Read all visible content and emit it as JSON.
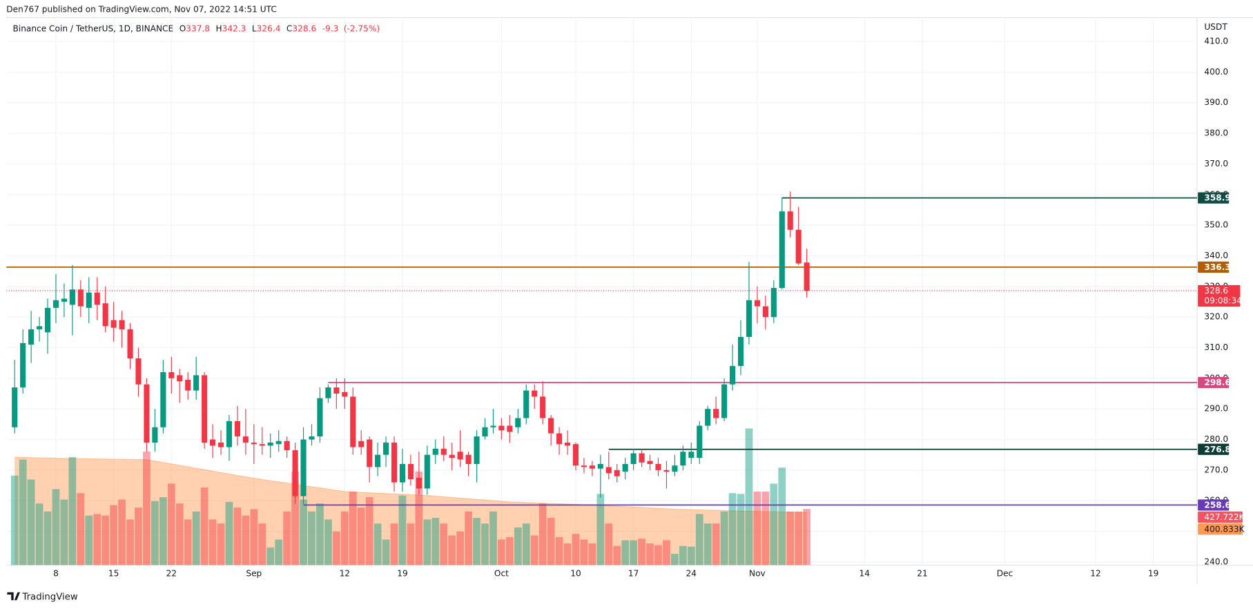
{
  "header": "Den767 published on TradingView.com, Nov 07, 2022 14:51 UTC",
  "footer": "TradingView",
  "chart_data": {
    "type": "candlestick",
    "symbol": "Binance Coin / TetherUS, 1D, BINANCE",
    "ohlc_labels": [
      "O",
      "H",
      "L",
      "C"
    ],
    "change": -9.3,
    "change_pct": {
      "value": -2.75,
      "label": "(-2.75%)"
    },
    "currency": "USDT",
    "countdown": "09:08:34",
    "up_color": "#089981",
    "down_color": "#f23645",
    "x": [
      0,
      1,
      2,
      3,
      4,
      5,
      6,
      7,
      8,
      9,
      10,
      11,
      12,
      13,
      14,
      15,
      16,
      17,
      18,
      19,
      20,
      21,
      22,
      23,
      24,
      25,
      26,
      27,
      28,
      29,
      30,
      31,
      32,
      33,
      34,
      35,
      36,
      37,
      38,
      39,
      40,
      41,
      42,
      43,
      44,
      45,
      46,
      47,
      48,
      49,
      50,
      51,
      52,
      53,
      54,
      55,
      56,
      57,
      58,
      59,
      60,
      61,
      62,
      63,
      64,
      65,
      66,
      67,
      68,
      69,
      70,
      71,
      72,
      73,
      74,
      75,
      76,
      77,
      78,
      79,
      80,
      81,
      82,
      83,
      84,
      85,
      86,
      87,
      88,
      89,
      90,
      91,
      92,
      93,
      94,
      95,
      96
    ],
    "open": [
      284,
      297,
      311,
      316,
      315,
      323,
      325,
      324,
      329,
      323,
      328,
      324.5,
      319,
      319,
      316,
      306.5,
      298,
      279,
      284,
      302,
      301,
      299.5,
      296,
      301,
      280,
      279,
      277.5,
      286,
      281,
      279,
      278.5,
      278,
      278.5,
      279.5,
      276.5,
      261.5,
      280,
      281,
      293.5,
      297,
      295.5,
      294,
      279.5,
      280,
      271,
      275,
      279,
      266,
      272,
      267.5,
      264,
      275,
      277,
      275,
      276,
      275,
      272,
      281,
      284,
      284.5,
      284.5,
      284,
      287,
      296,
      294,
      287,
      282,
      279,
      278.5,
      271.5,
      271.5,
      270.5,
      271,
      270,
      269.5,
      272,
      275.5,
      273,
      272,
      270,
      269.5,
      271.5,
      274,
      274,
      284.5,
      290,
      287,
      298,
      304,
      313.5,
      325.5,
      323.5,
      320,
      329.5,
      354.5,
      348.5,
      337.8
    ],
    "high": [
      306,
      316,
      322,
      320,
      326,
      334,
      331,
      337,
      332,
      333,
      333,
      330,
      325,
      322,
      318,
      310,
      300,
      290,
      306,
      307,
      303,
      302,
      307,
      302,
      285,
      283,
      288,
      291,
      290,
      285,
      284,
      282,
      283,
      281,
      279,
      284,
      285,
      297,
      298,
      300,
      300,
      297,
      283,
      281,
      279,
      281,
      281,
      277,
      275,
      276,
      278,
      280,
      281,
      279,
      283,
      276,
      283,
      287,
      290,
      287,
      288,
      290,
      298,
      298,
      299,
      288,
      284,
      283,
      279,
      274,
      273,
      275,
      276,
      272,
      274,
      277,
      277,
      275,
      274,
      273,
      275,
      278,
      279,
      286,
      291,
      294,
      300,
      311,
      319,
      338,
      330,
      327,
      332,
      359,
      361,
      356,
      342.3
    ],
    "low": [
      282,
      295,
      305,
      312,
      308,
      318,
      320,
      314,
      320,
      318,
      319,
      315,
      312,
      310,
      303,
      294,
      276,
      276,
      282,
      295,
      292,
      293,
      293,
      277,
      274,
      275,
      273,
      278,
      275,
      272,
      275,
      274,
      276,
      274,
      259,
      259,
      278,
      279,
      292,
      290,
      290,
      275,
      275,
      266,
      268,
      271,
      263,
      263,
      265,
      262,
      262,
      272,
      273,
      270,
      271,
      268,
      266,
      280,
      282,
      280,
      279,
      282,
      285,
      290,
      285,
      278,
      275,
      275,
      270,
      269,
      268,
      261,
      267,
      266,
      267,
      270,
      271,
      270,
      268,
      264,
      268,
      270,
      272,
      272,
      283,
      285,
      286,
      296,
      301,
      311,
      318,
      316,
      318,
      329,
      346,
      337,
      326.4
    ],
    "close": [
      297,
      311.5,
      316,
      317,
      323,
      325.5,
      326,
      329,
      323.5,
      328,
      324,
      317,
      316.5,
      316,
      306.5,
      298,
      279,
      284,
      302,
      300,
      299,
      296,
      301,
      279,
      278,
      277.5,
      286,
      281,
      279,
      278.5,
      278,
      279,
      279.5,
      276.5,
      261.5,
      280,
      281,
      293.5,
      297,
      295,
      294,
      277.5,
      277.5,
      271,
      275,
      279,
      266,
      272,
      267,
      264,
      275,
      277,
      275,
      274,
      273.5,
      272,
      281,
      284,
      284.5,
      283,
      282.5,
      287,
      296,
      294,
      287,
      282,
      278.5,
      278,
      271.5,
      271,
      270.5,
      272,
      269,
      268,
      272,
      275.5,
      272.5,
      272,
      270,
      269.5,
      271.5,
      276,
      276,
      284.5,
      290,
      287,
      298,
      304,
      313.5,
      325.5,
      323.5,
      320,
      329.5,
      354.5,
      348.5,
      337.5,
      328.6
    ],
    "volume": {
      "values": [
        683,
        805,
        653,
        470,
        409,
        580,
        500,
        824,
        549,
        378,
        390,
        378,
        458,
        500,
        348,
        439,
        866,
        488,
        518,
        622,
        470,
        348,
        409,
        592,
        348,
        317,
        482,
        439,
        378,
        427,
        317,
        134,
        195,
        409,
        714,
        500,
        409,
        470,
        348,
        256,
        409,
        561,
        439,
        518,
        317,
        195,
        317,
        531,
        317,
        714,
        348,
        360,
        317,
        226,
        256,
        409,
        360,
        317,
        409,
        195,
        213,
        287,
        317,
        226,
        470,
        360,
        213,
        165,
        238,
        195,
        165,
        543,
        317,
        146,
        189,
        189,
        201,
        165,
        152,
        189,
        85,
        146,
        140,
        390,
        317,
        317,
        409,
        549,
        543,
        1043,
        561,
        561,
        622,
        744,
        409,
        409,
        427.722
      ],
      "last_label": "427.722K",
      "color": "#f7525f"
    },
    "volume_ma": {
      "values": [
        823,
        822,
        820,
        818,
        817,
        815,
        814,
        813,
        812,
        811,
        810,
        809,
        808,
        807,
        806,
        806,
        805,
        794,
        783,
        772,
        761,
        750,
        739,
        728,
        717,
        706,
        695,
        684,
        673,
        663,
        653,
        644,
        635,
        626,
        617,
        607,
        598,
        589,
        580,
        570,
        561,
        558,
        555,
        552,
        549,
        546,
        543,
        540,
        537,
        534,
        531,
        526,
        521,
        516,
        511,
        506,
        501,
        496,
        491,
        487,
        482,
        480,
        477,
        475,
        472,
        470,
        468,
        465,
        463,
        460,
        458,
        455,
        452,
        449,
        446,
        443,
        439,
        436,
        433,
        430,
        427,
        425,
        423,
        421,
        419,
        418,
        416,
        414,
        412,
        411,
        409,
        408,
        407,
        405,
        404,
        402,
        400.833
      ],
      "last_label": "400.833K",
      "color": "#ff9850"
    },
    "volume_ylim": [
      0,
      4180
    ],
    "xlim": [
      -1,
      143.3
    ],
    "xticks": [
      {
        "value": 5,
        "label": "8"
      },
      {
        "value": 12,
        "label": "15"
      },
      {
        "value": 19,
        "label": "22"
      },
      {
        "value": 29,
        "label": "Sep"
      },
      {
        "value": 40,
        "label": "12"
      },
      {
        "value": 47,
        "label": "19"
      },
      {
        "value": 59,
        "label": "Oct"
      },
      {
        "value": 68,
        "label": "10"
      },
      {
        "value": 75,
        "label": "17"
      },
      {
        "value": 82,
        "label": "24"
      },
      {
        "value": 90,
        "label": "Nov"
      },
      {
        "value": 103,
        "label": "14"
      },
      {
        "value": 110,
        "label": "21"
      },
      {
        "value": 120,
        "label": "Dec"
      },
      {
        "value": 131,
        "label": "12"
      },
      {
        "value": 138,
        "label": "19"
      }
    ],
    "ylim": [
      239,
      417.8
    ],
    "yticks": [
      {
        "value": 240,
        "label": "240.0"
      },
      {
        "value": 250,
        "label": "250.0"
      },
      {
        "value": 260,
        "label": "260.0"
      },
      {
        "value": 270,
        "label": "270.0"
      },
      {
        "value": 280,
        "label": "280.0"
      },
      {
        "value": 290,
        "label": "290.0"
      },
      {
        "value": 300,
        "label": "300.0"
      },
      {
        "value": 310,
        "label": "310.0"
      },
      {
        "value": 320,
        "label": "320.0"
      },
      {
        "value": 330,
        "label": "330.0"
      },
      {
        "value": 340,
        "label": "340.0"
      },
      {
        "value": 350,
        "label": "350.0"
      },
      {
        "value": 360,
        "label": "360.0"
      },
      {
        "value": 370,
        "label": "370.0"
      },
      {
        "value": 380,
        "label": "380.0"
      },
      {
        "value": 390,
        "label": "390.0"
      },
      {
        "value": 400,
        "label": "400.0"
      },
      {
        "value": 410,
        "label": "410.0"
      }
    ],
    "grid": true,
    "levels": [
      {
        "value": 358.9,
        "color": "#0d4b43",
        "from": 93
      },
      {
        "value": 336.3,
        "color": "#b35c00"
      },
      {
        "value": 298.6,
        "color": "#d94680",
        "from": 38
      },
      {
        "value": 276.8,
        "color": "#0b3d36",
        "from": 72
      },
      {
        "value": 258.6,
        "color": "#673ab7",
        "from": 35
      }
    ]
  }
}
